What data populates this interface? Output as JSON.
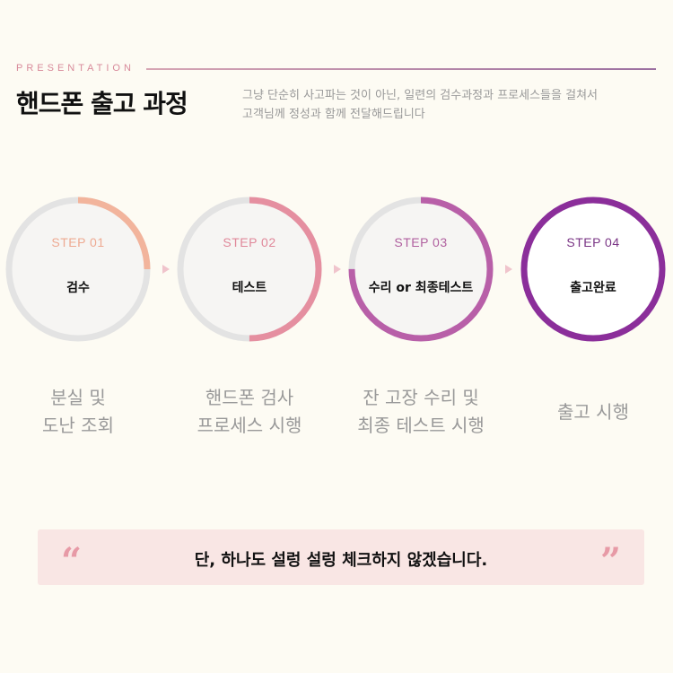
{
  "header": {
    "eyebrow": "PRESENTATION",
    "title": "핸드폰 출고 과정",
    "desc_line1": "그냥 단순히 사고파는 것이 아닌, 일련의 검수과정과 프로세스들을 걸쳐서",
    "desc_line2": "고객님께 정성과 함께 전달해드립니다"
  },
  "steps": [
    {
      "label": "STEP 01",
      "name": "검수",
      "progress": 0.25,
      "color": "#f2b49c",
      "label_color": "#eeaa92",
      "caption1": "분실 및",
      "caption2": "도난 조회"
    },
    {
      "label": "STEP 02",
      "name": "테스트",
      "progress": 0.5,
      "color": "#e58fa0",
      "label_color": "#e0889a",
      "caption1": "핸드폰 검사",
      "caption2": "프로세스 시행"
    },
    {
      "label": "STEP 03",
      "name": "수리 or 최종테스트",
      "progress": 0.75,
      "color": "#b85fa8",
      "label_color": "#b0609f",
      "caption1": "잔 고장 수리 및",
      "caption2": "최종 테스트 시행"
    },
    {
      "label": "STEP 04",
      "name": "출고완료",
      "progress": 1.0,
      "color": "#8b2e9a",
      "label_color": "#7a3585",
      "caption1": "출고 시행",
      "caption2": ""
    }
  ],
  "quote": {
    "open": "“",
    "text": "단, 하나도 설렁 설렁 체크하지 않겠습니다.",
    "close": "”"
  }
}
